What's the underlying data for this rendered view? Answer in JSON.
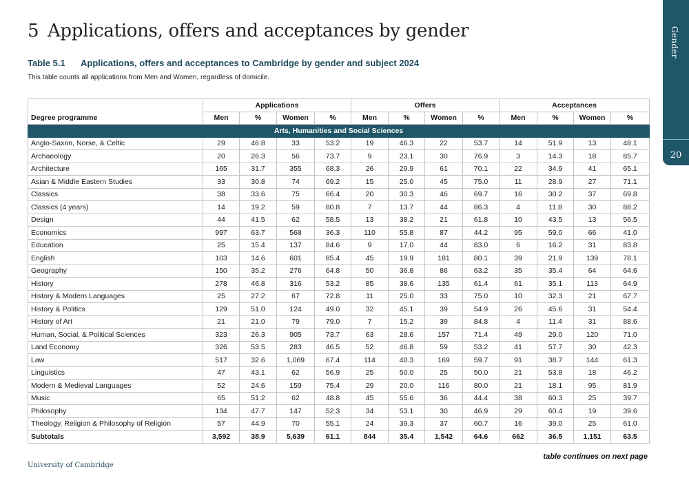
{
  "sidebar": {
    "label": "Gender",
    "page_number": "20"
  },
  "chapter": {
    "title": "5 Applications, offers and acceptances by gender"
  },
  "table": {
    "number": "Table 5.1",
    "title": "Applications, offers and acceptances to Cambridge by gender and subject 2024",
    "note": "This table counts all applications from Men and Women, regardless of domicile.",
    "group_headers": [
      "Applications",
      "Offers",
      "Acceptances"
    ],
    "programme_header": "Degree programme",
    "sub_headers": [
      "Men",
      "%",
      "Women",
      "%",
      "Men",
      "%",
      "Women",
      "%",
      "Men",
      "%",
      "Women",
      "%"
    ],
    "section_title": "Arts, Humanities and Social Sciences",
    "rows": [
      {
        "name": "Anglo-Saxon, Norse, & Celtic",
        "values": [
          "29",
          "46.8",
          "33",
          "53.2",
          "19",
          "46.3",
          "22",
          "53.7",
          "14",
          "51.9",
          "13",
          "48.1"
        ]
      },
      {
        "name": "Archaeology",
        "values": [
          "20",
          "26.3",
          "56",
          "73.7",
          "9",
          "23.1",
          "30",
          "76.9",
          "3",
          "14.3",
          "18",
          "85.7"
        ]
      },
      {
        "name": "Architecture",
        "values": [
          "165",
          "31.7",
          "355",
          "68.3",
          "26",
          "29.9",
          "61",
          "70.1",
          "22",
          "34.9",
          "41",
          "65.1"
        ]
      },
      {
        "name": "Asian & Middle Eastern Studies",
        "values": [
          "33",
          "30.8",
          "74",
          "69.2",
          "15",
          "25.0",
          "45",
          "75.0",
          "11",
          "28.9",
          "27",
          "71.1"
        ]
      },
      {
        "name": "Classics",
        "values": [
          "38",
          "33.6",
          "75",
          "66.4",
          "20",
          "30.3",
          "46",
          "69.7",
          "16",
          "30.2",
          "37",
          "69.8"
        ]
      },
      {
        "name": "Classics (4 years)",
        "values": [
          "14",
          "19.2",
          "59",
          "80.8",
          "7",
          "13.7",
          "44",
          "86.3",
          "4",
          "11.8",
          "30",
          "88.2"
        ]
      },
      {
        "name": "Design",
        "values": [
          "44",
          "41.5",
          "62",
          "58.5",
          "13",
          "38.2",
          "21",
          "61.8",
          "10",
          "43.5",
          "13",
          "56.5"
        ]
      },
      {
        "name": "Economics",
        "values": [
          "997",
          "63.7",
          "568",
          "36.3",
          "110",
          "55.8",
          "87",
          "44.2",
          "95",
          "59.0",
          "66",
          "41.0"
        ]
      },
      {
        "name": "Education",
        "values": [
          "25",
          "15.4",
          "137",
          "84.6",
          "9",
          "17.0",
          "44",
          "83.0",
          "6",
          "16.2",
          "31",
          "83.8"
        ]
      },
      {
        "name": "English",
        "values": [
          "103",
          "14.6",
          "601",
          "85.4",
          "45",
          "19.9",
          "181",
          "80.1",
          "39",
          "21.9",
          "139",
          "78.1"
        ]
      },
      {
        "name": "Geography",
        "values": [
          "150",
          "35.2",
          "276",
          "64.8",
          "50",
          "36.8",
          "86",
          "63.2",
          "35",
          "35.4",
          "64",
          "64.6"
        ]
      },
      {
        "name": "History",
        "values": [
          "278",
          "46.8",
          "316",
          "53.2",
          "85",
          "38.6",
          "135",
          "61.4",
          "61",
          "35.1",
          "113",
          "64.9"
        ]
      },
      {
        "name": "History & Modern Languages",
        "values": [
          "25",
          "27.2",
          "67",
          "72.8",
          "11",
          "25.0",
          "33",
          "75.0",
          "10",
          "32.3",
          "21",
          "67.7"
        ]
      },
      {
        "name": "History & Politics",
        "values": [
          "129",
          "51.0",
          "124",
          "49.0",
          "32",
          "45.1",
          "39",
          "54.9",
          "26",
          "45.6",
          "31",
          "54.4"
        ]
      },
      {
        "name": "History of Art",
        "values": [
          "21",
          "21.0",
          "79",
          "79.0",
          "7",
          "15.2",
          "39",
          "84.8",
          "4",
          "11.4",
          "31",
          "88.6"
        ]
      },
      {
        "name": "Human, Social, & Political Sciences",
        "values": [
          "323",
          "26.3",
          "905",
          "73.7",
          "63",
          "28.6",
          "157",
          "71.4",
          "49",
          "29.0",
          "120",
          "71.0"
        ]
      },
      {
        "name": "Land Economy",
        "values": [
          "326",
          "53.5",
          "283",
          "46.5",
          "52",
          "46.8",
          "59",
          "53.2",
          "41",
          "57.7",
          "30",
          "42.3"
        ]
      },
      {
        "name": "Law",
        "values": [
          "517",
          "32.6",
          "1,069",
          "67.4",
          "114",
          "40.3",
          "169",
          "59.7",
          "91",
          "38.7",
          "144",
          "61.3"
        ]
      },
      {
        "name": "Linguistics",
        "values": [
          "47",
          "43.1",
          "62",
          "56.9",
          "25",
          "50.0",
          "25",
          "50.0",
          "21",
          "53.8",
          "18",
          "46.2"
        ]
      },
      {
        "name": "Modern & Medieval Languages",
        "values": [
          "52",
          "24.6",
          "159",
          "75.4",
          "29",
          "20.0",
          "116",
          "80.0",
          "21",
          "18.1",
          "95",
          "81.9"
        ]
      },
      {
        "name": "Music",
        "values": [
          "65",
          "51.2",
          "62",
          "48.8",
          "45",
          "55.6",
          "36",
          "44.4",
          "38",
          "60.3",
          "25",
          "39.7"
        ]
      },
      {
        "name": "Philosophy",
        "values": [
          "134",
          "47.7",
          "147",
          "52.3",
          "34",
          "53.1",
          "30",
          "46.9",
          "29",
          "60.4",
          "19",
          "39.6"
        ]
      },
      {
        "name": "Theology, Religion & Philosophy of Religion",
        "values": [
          "57",
          "44.9",
          "70",
          "55.1",
          "24",
          "39.3",
          "37",
          "60.7",
          "16",
          "39.0",
          "25",
          "61.0"
        ]
      }
    ],
    "subtotal": {
      "name": "Subtotals",
      "values": [
        "3,592",
        "38.9",
        "5,639",
        "61.1",
        "844",
        "35.4",
        "1,542",
        "64.6",
        "662",
        "36.5",
        "1,151",
        "63.5"
      ]
    }
  },
  "footer": {
    "brand": "University of Cambridge",
    "continues": "table continues on next page"
  },
  "colors": {
    "accent": "#1f5668",
    "title_text": "#1f4a5c"
  }
}
